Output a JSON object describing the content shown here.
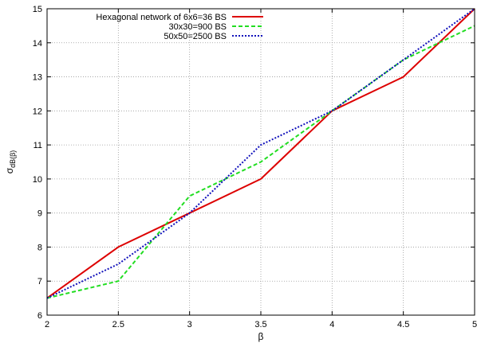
{
  "chart_data": {
    "type": "line",
    "xlabel": "β",
    "ylabel_main": "σ",
    "ylabel_sub": "dB(β)",
    "xlim": [
      2,
      5
    ],
    "ylim": [
      6,
      15
    ],
    "x_ticks": [
      "2",
      "2.5",
      "3",
      "3.5",
      "4",
      "4.5",
      "5"
    ],
    "y_ticks": [
      "6",
      "7",
      "8",
      "9",
      "10",
      "11",
      "12",
      "13",
      "14",
      "15"
    ],
    "grid": true,
    "legend_position": "top-right",
    "series": [
      {
        "name": "Hexagonal network of 6x6=36 BS",
        "color": "#dd0000",
        "dash": "solid",
        "x": [
          2,
          2.5,
          3,
          3.5,
          4,
          4.5,
          5
        ],
        "y": [
          6.5,
          8,
          9,
          10,
          12,
          13,
          15
        ]
      },
      {
        "name": "30x30=900 BS",
        "color": "#22dd22",
        "dash": "dashed",
        "x": [
          2,
          2.5,
          3,
          3.5,
          4,
          4.5,
          5
        ],
        "y": [
          6.5,
          7,
          9.5,
          10.5,
          12,
          13.5,
          14.5
        ]
      },
      {
        "name": "50x50=2500 BS",
        "color": "#1111bb",
        "dash": "dotted",
        "x": [
          2,
          2.5,
          3,
          3.5,
          4,
          4.5,
          5
        ],
        "y": [
          6.5,
          7.5,
          9,
          11,
          12,
          13.5,
          15
        ]
      }
    ]
  }
}
